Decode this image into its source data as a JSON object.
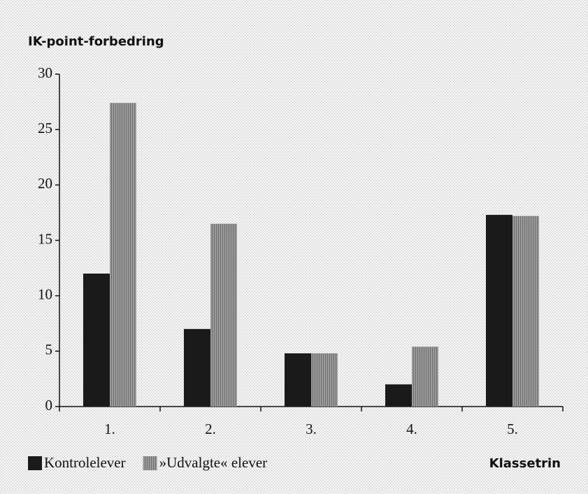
{
  "chart_data": {
    "type": "bar",
    "ylabel": "IK-point-forbedring",
    "xlabel": "Klassetrin",
    "categories": [
      "1.",
      "2.",
      "3.",
      "4.",
      "5."
    ],
    "series": [
      {
        "name": "Kontrolelever",
        "color": "#1a1a1a",
        "values": [
          12,
          7,
          4.8,
          2,
          17.3
        ]
      },
      {
        "name": "»Udvalgte« elever",
        "color": "#8a8a8a",
        "values": [
          27.4,
          16.5,
          4.8,
          5.4,
          17.2
        ]
      }
    ],
    "ylim": [
      0,
      30
    ],
    "yticks": [
      0,
      5,
      10,
      15,
      20,
      25,
      30
    ]
  }
}
